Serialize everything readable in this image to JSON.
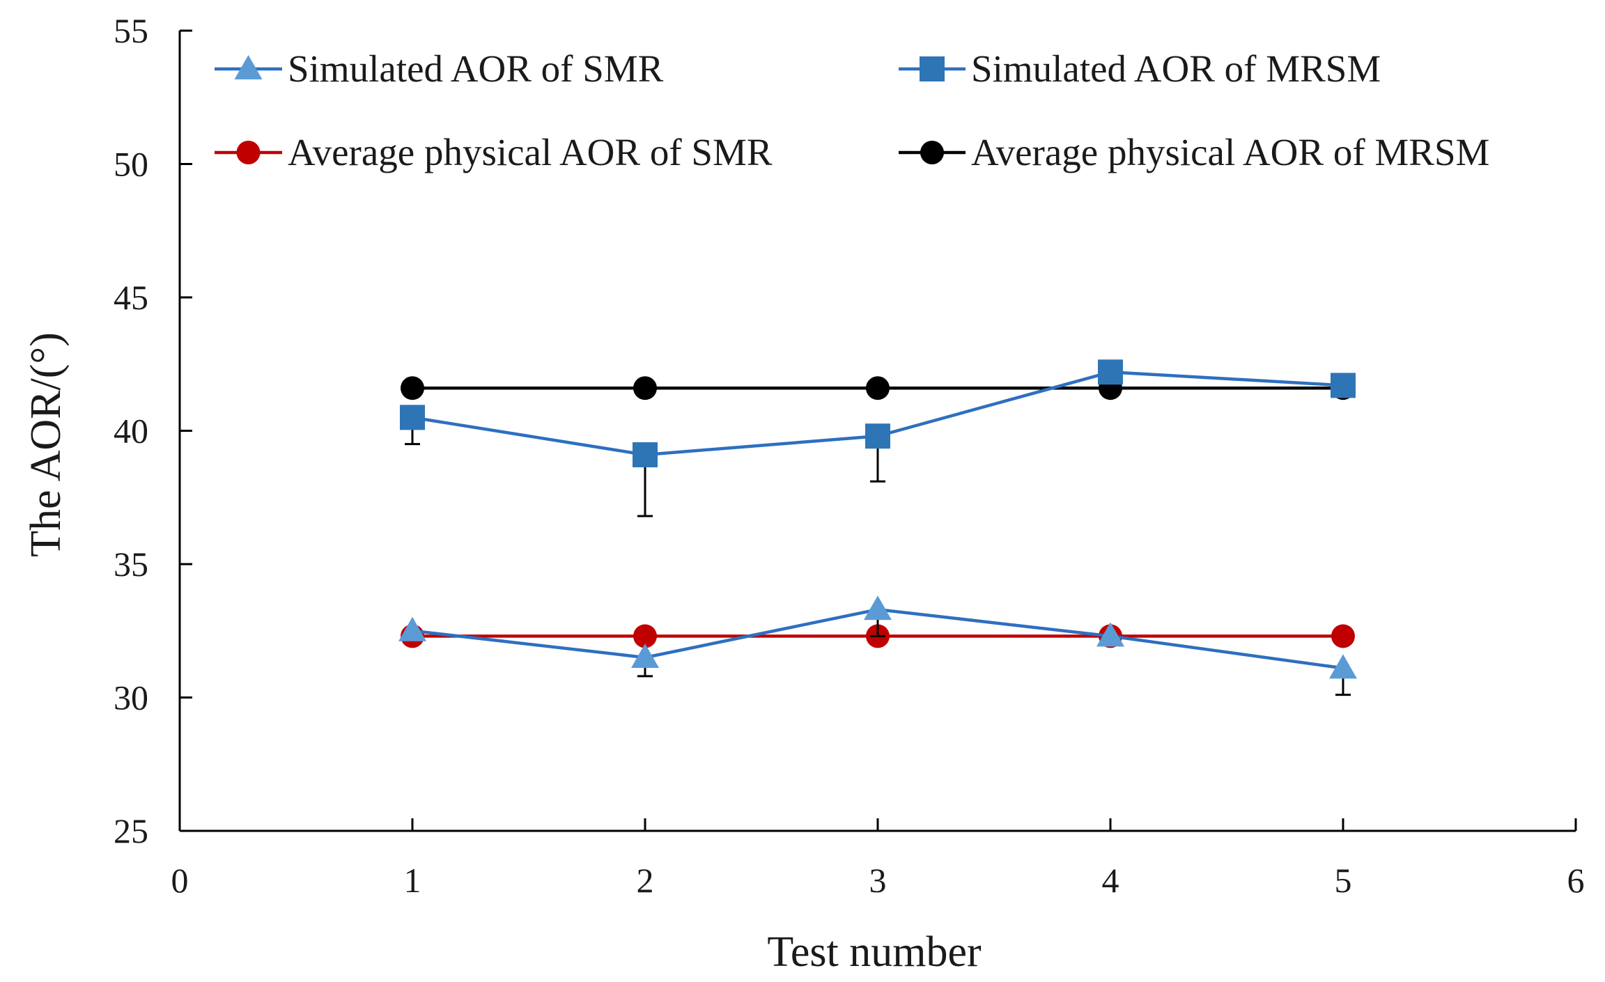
{
  "chart_data": {
    "type": "line",
    "xlabel": "Test number",
    "ylabel": "The AOR/(°)",
    "xlim": [
      0,
      6
    ],
    "ylim": [
      25,
      55
    ],
    "xticks": [
      "0",
      "1",
      "2",
      "3",
      "4",
      "5",
      "6"
    ],
    "yticks": [
      "25",
      "30",
      "35",
      "40",
      "45",
      "50",
      "55"
    ],
    "grid": false,
    "legend_position": "top",
    "series": [
      {
        "key": "sim_smr",
        "name": "Simulated AOR of SMR",
        "marker": "triangle",
        "color": "#2e6fc0",
        "marker_color": "#5b9bd5",
        "x": [
          1,
          2,
          3,
          4,
          5
        ],
        "y": [
          32.5,
          31.5,
          33.3,
          32.3,
          31.1
        ],
        "error": [
          0.0,
          0.7,
          1.0,
          0.0,
          1.0
        ]
      },
      {
        "key": "sim_mrsm",
        "name": "Simulated AOR of MRSM",
        "marker": "square",
        "color": "#2e6fc0",
        "marker_color": "#2e75b6",
        "x": [
          1,
          2,
          3,
          4,
          5
        ],
        "y": [
          40.5,
          39.1,
          39.8,
          42.2,
          41.7
        ],
        "error": [
          1.0,
          2.3,
          1.7,
          0.5,
          0.0
        ]
      },
      {
        "key": "phys_smr",
        "name": "Average physical AOR of SMR",
        "marker": "circle",
        "color": "#c00000",
        "marker_color": "#c00000",
        "x": [
          1,
          2,
          3,
          4,
          5
        ],
        "y": [
          32.3,
          32.3,
          32.3,
          32.3,
          32.3
        ]
      },
      {
        "key": "phys_mrsm",
        "name": "Average physical AOR of MRSM",
        "marker": "circle",
        "color": "#000000",
        "marker_color": "#000000",
        "x": [
          1,
          2,
          3,
          4,
          5
        ],
        "y": [
          41.6,
          41.6,
          41.6,
          41.6,
          41.6
        ]
      }
    ]
  }
}
